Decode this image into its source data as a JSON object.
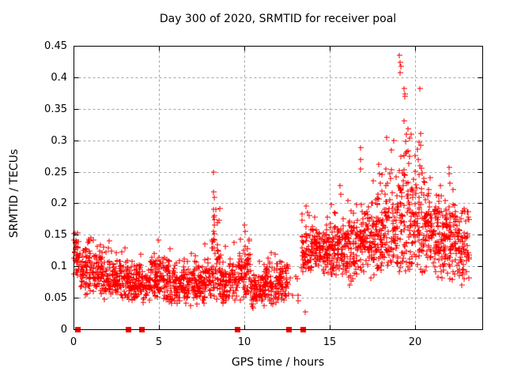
{
  "title": "Day 300 of 2020, SRMTID for receiver poal",
  "chart_data": {
    "type": "scatter",
    "title": "Day 300 of 2020, SRMTID for receiver poal",
    "xlabel": "GPS time / hours",
    "ylabel": "SRMTID / TECUs",
    "xlim": [
      0,
      23.93
    ],
    "ylim": [
      0,
      0.45
    ],
    "x_ticks": [
      0,
      5,
      10,
      15,
      20
    ],
    "x_tick_labels": [
      "0",
      "5",
      "10",
      "15",
      "20"
    ],
    "y_ticks": [
      0,
      0.05,
      0.1,
      0.15,
      0.2,
      0.25,
      0.3,
      0.35,
      0.4,
      0.45
    ],
    "y_tick_labels": [
      "0",
      "0.05",
      "0.1",
      "0.15",
      "0.2",
      "0.25",
      "0.3",
      "0.35",
      "0.4",
      "0.45"
    ],
    "grid": true,
    "legend": "none",
    "marker": "plus",
    "colors": {
      "marker": "#ff0000",
      "grid": "#a6a6a6",
      "border": "#000000",
      "text": "#000000",
      "background": "#ffffff"
    },
    "series_name": "SRMTID",
    "seed": 20200300,
    "density_segments": [
      {
        "t0": 0.0,
        "t1": 0.35,
        "mean": 0.115,
        "sd": 0.02,
        "min": 0.075,
        "max": 0.158,
        "per_hour": 110
      },
      {
        "t0": 0.35,
        "t1": 1.1,
        "mean": 0.098,
        "sd": 0.022,
        "min": 0.05,
        "max": 0.16,
        "per_hour": 100
      },
      {
        "t0": 1.1,
        "t1": 2.1,
        "mean": 0.092,
        "sd": 0.022,
        "min": 0.048,
        "max": 0.155,
        "per_hour": 100
      },
      {
        "t0": 2.1,
        "t1": 3.2,
        "mean": 0.08,
        "sd": 0.02,
        "min": 0.042,
        "max": 0.138,
        "per_hour": 100
      },
      {
        "t0": 3.2,
        "t1": 4.5,
        "mean": 0.074,
        "sd": 0.017,
        "min": 0.04,
        "max": 0.128,
        "per_hour": 100
      },
      {
        "t0": 4.5,
        "t1": 5.6,
        "mean": 0.082,
        "sd": 0.021,
        "min": 0.042,
        "max": 0.15,
        "per_hour": 100
      },
      {
        "t0": 5.6,
        "t1": 6.6,
        "mean": 0.074,
        "sd": 0.019,
        "min": 0.036,
        "max": 0.138,
        "per_hour": 100
      },
      {
        "t0": 6.6,
        "t1": 7.6,
        "mean": 0.07,
        "sd": 0.018,
        "min": 0.035,
        "max": 0.128,
        "per_hour": 100
      },
      {
        "t0": 7.6,
        "t1": 8.05,
        "mean": 0.082,
        "sd": 0.022,
        "min": 0.04,
        "max": 0.15,
        "per_hour": 100
      },
      {
        "t0": 8.05,
        "t1": 8.6,
        "mean": 0.105,
        "sd": 0.035,
        "min": 0.048,
        "max": 0.235,
        "per_hour": 110
      },
      {
        "t0": 8.6,
        "t1": 9.6,
        "mean": 0.075,
        "sd": 0.02,
        "min": 0.038,
        "max": 0.14,
        "per_hour": 100
      },
      {
        "t0": 9.6,
        "t1": 10.35,
        "mean": 0.088,
        "sd": 0.024,
        "min": 0.045,
        "max": 0.162,
        "per_hour": 100
      },
      {
        "t0": 10.35,
        "t1": 11.2,
        "mean": 0.064,
        "sd": 0.017,
        "min": 0.03,
        "max": 0.115,
        "per_hour": 100
      },
      {
        "t0": 11.2,
        "t1": 12.3,
        "mean": 0.074,
        "sd": 0.021,
        "min": 0.034,
        "max": 0.138,
        "per_hour": 105
      },
      {
        "t0": 12.3,
        "t1": 12.6,
        "mean": 0.078,
        "sd": 0.018,
        "min": 0.042,
        "max": 0.118,
        "per_hour": 70
      },
      {
        "t0": 12.6,
        "t1": 13.35,
        "mean": 0.06,
        "sd": 0.025,
        "min": 0.026,
        "max": 0.105,
        "per_hour": 9
      },
      {
        "t0": 13.35,
        "t1": 14.05,
        "mean": 0.128,
        "sd": 0.026,
        "min": 0.088,
        "max": 0.2,
        "per_hour": 95
      },
      {
        "t0": 14.05,
        "t1": 15.05,
        "mean": 0.124,
        "sd": 0.021,
        "min": 0.088,
        "max": 0.18,
        "per_hour": 110
      },
      {
        "t0": 15.05,
        "t1": 16.05,
        "mean": 0.13,
        "sd": 0.024,
        "min": 0.082,
        "max": 0.225,
        "per_hour": 110
      },
      {
        "t0": 16.05,
        "t1": 17.05,
        "mean": 0.138,
        "sd": 0.03,
        "min": 0.062,
        "max": 0.258,
        "per_hour": 110
      },
      {
        "t0": 17.05,
        "t1": 18.05,
        "mean": 0.148,
        "sd": 0.034,
        "min": 0.08,
        "max": 0.272,
        "per_hour": 110
      },
      {
        "t0": 18.05,
        "t1": 19.0,
        "mean": 0.158,
        "sd": 0.044,
        "min": 0.088,
        "max": 0.32,
        "per_hour": 110
      },
      {
        "t0": 19.0,
        "t1": 19.75,
        "mean": 0.185,
        "sd": 0.065,
        "min": 0.092,
        "max": 0.44,
        "per_hour": 110
      },
      {
        "t0": 19.75,
        "t1": 20.55,
        "mean": 0.168,
        "sd": 0.05,
        "min": 0.09,
        "max": 0.385,
        "per_hour": 110
      },
      {
        "t0": 20.55,
        "t1": 21.55,
        "mean": 0.158,
        "sd": 0.038,
        "min": 0.08,
        "max": 0.3,
        "per_hour": 110
      },
      {
        "t0": 21.55,
        "t1": 22.55,
        "mean": 0.138,
        "sd": 0.034,
        "min": 0.052,
        "max": 0.25,
        "per_hour": 110
      },
      {
        "t0": 22.55,
        "t1": 23.15,
        "mean": 0.124,
        "sd": 0.03,
        "min": 0.06,
        "max": 0.2,
        "per_hour": 100
      }
    ],
    "outliers": [
      [
        0.02,
        0.152
      ],
      [
        8.18,
        0.249
      ],
      [
        8.2,
        0.218
      ],
      [
        8.22,
        0.209
      ],
      [
        8.19,
        0.178
      ],
      [
        8.24,
        0.165
      ],
      [
        8.33,
        0.19
      ],
      [
        9.98,
        0.165
      ],
      [
        10.04,
        0.156
      ],
      [
        13.57,
        0.028
      ],
      [
        13.62,
        0.196
      ],
      [
        13.7,
        0.186
      ],
      [
        15.62,
        0.228
      ],
      [
        15.66,
        0.214
      ],
      [
        16.78,
        0.288
      ],
      [
        16.82,
        0.27
      ],
      [
        16.8,
        0.254
      ],
      [
        17.88,
        0.262
      ],
      [
        17.92,
        0.247
      ],
      [
        18.35,
        0.305
      ],
      [
        18.62,
        0.285
      ],
      [
        18.73,
        0.3
      ],
      [
        19.08,
        0.435
      ],
      [
        19.12,
        0.424
      ],
      [
        19.16,
        0.417
      ],
      [
        19.1,
        0.407
      ],
      [
        19.33,
        0.382
      ],
      [
        19.41,
        0.374
      ],
      [
        19.36,
        0.331
      ],
      [
        19.5,
        0.31
      ],
      [
        20.28,
        0.382
      ],
      [
        20.33,
        0.311
      ],
      [
        20.24,
        0.297
      ],
      [
        21.98,
        0.257
      ],
      [
        22.0,
        0.247
      ],
      [
        22.03,
        0.232
      ],
      [
        22.2,
        0.222
      ],
      [
        22.75,
        0.188
      ]
    ],
    "zero_flag_hours": [
      0.25,
      3.2,
      4.0,
      9.6,
      12.6,
      13.4
    ]
  }
}
